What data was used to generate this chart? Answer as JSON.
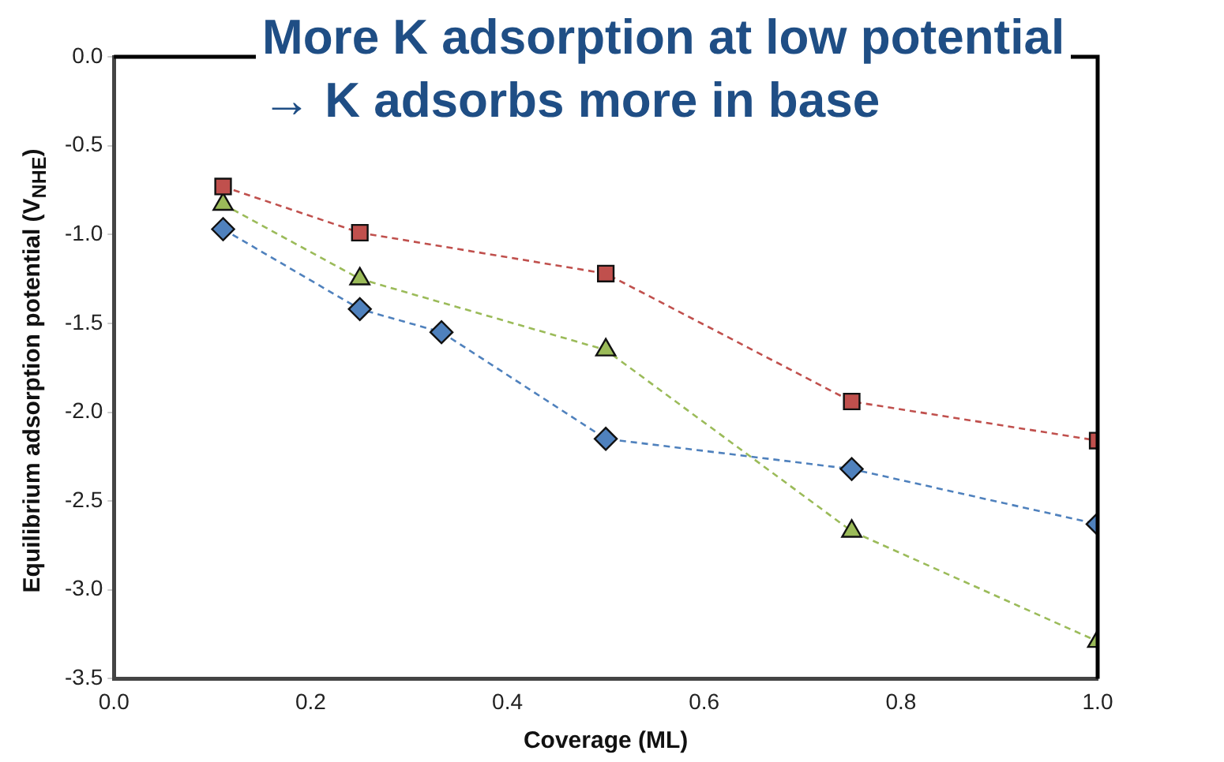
{
  "chart_data": {
    "type": "line",
    "title": "More K adsorption at low potential\n→ K adsorbs more in base",
    "xlabel": "Coverage (ML)",
    "ylabel": "Equilibrium adsorption potential (V$_{NHE}$)",
    "xlim": [
      0,
      1
    ],
    "xticks": [
      {
        "value": 0,
        "label": "0.0"
      },
      0.2,
      0.4,
      0.6,
      0.8,
      {
        "value": 1,
        "label": "1.0"
      }
    ],
    "ylim": [
      -3.5,
      0
    ],
    "yticks": [
      -3.5,
      {
        "value": -3,
        "label": "-3.0"
      },
      -2.5,
      {
        "value": -2,
        "label": "-2.0"
      },
      -1.5,
      {
        "value": -1,
        "label": "-1.0"
      },
      -0.5,
      {
        "value": 0,
        "label": "0.0"
      }
    ],
    "grid": false,
    "legend": false,
    "line_style": "dashed",
    "series": [
      {
        "color": "#c0504d",
        "marker": "square",
        "x": [
          0.111,
          0.25,
          0.5,
          0.75,
          1.0
        ],
        "values": [
          -0.73,
          -0.99,
          -1.22,
          -1.94,
          -2.16
        ]
      },
      {
        "color": "#9bbb59",
        "marker": "triangle",
        "x": [
          0.111,
          0.25,
          0.5,
          0.75,
          1.0
        ],
        "values": [
          -0.83,
          -1.25,
          -1.65,
          -2.67,
          -3.29
        ]
      },
      {
        "color": "#4f81bd",
        "marker": "diamond",
        "x": [
          0.111,
          0.25,
          0.333,
          0.5,
          0.75,
          1.0
        ],
        "values": [
          -0.97,
          -1.42,
          -1.55,
          -2.15,
          -2.32,
          -2.63
        ]
      }
    ]
  }
}
